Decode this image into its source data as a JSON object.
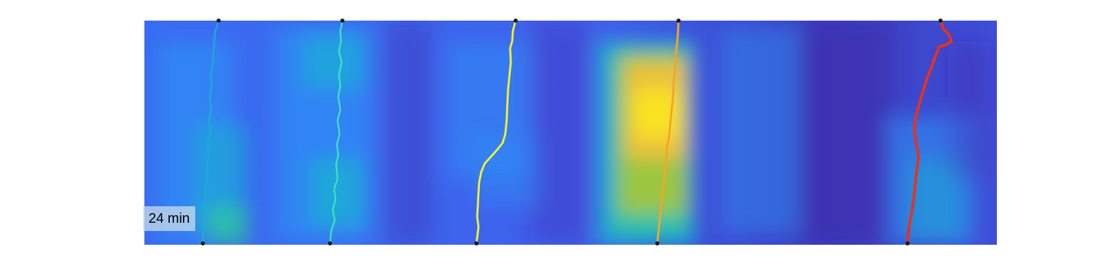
{
  "time_label": "24 min",
  "colormap": [
    "#3e26a8",
    "#4352ee",
    "#2e8df5",
    "#17b5cf",
    "#2cc69f",
    "#b0c730",
    "#fcbf3a",
    "#f9e721"
  ],
  "tracks": [
    {
      "name": "track-cyan",
      "color": "#21a9d6"
    },
    {
      "name": "track-aquamarine",
      "color": "#3ee0c0"
    },
    {
      "name": "track-yellow",
      "color": "#f2f22a"
    },
    {
      "name": "track-orange",
      "color": "#f5a623"
    },
    {
      "name": "track-red",
      "color": "#e8311c"
    }
  ]
}
